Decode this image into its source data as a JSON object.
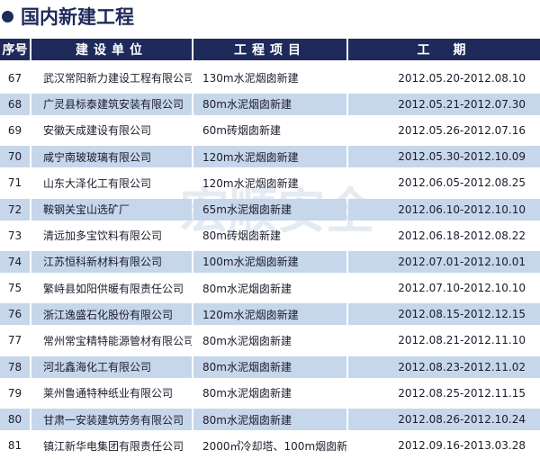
{
  "title": "国内新建工程",
  "colors": {
    "header_bg": "#1e2a5a",
    "alt_row": "#c6d6eb"
  },
  "headers": [
    "序号",
    "建设单位",
    "工程项目",
    "工　期"
  ],
  "rows": [
    [
      "67",
      "武汉常阳新力建设工程有限公司",
      "130m水泥烟囱新建",
      "2012.05.20-2012.08.10"
    ],
    [
      "68",
      "广灵县标泰建筑安装有限公司",
      "80m水泥烟囱新建",
      "2012.05.21-2012.07.30"
    ],
    [
      "69",
      "安徽天成建设有限公司",
      "60m砖烟囱新建",
      "2012.05.26-2012.07.16"
    ],
    [
      "70",
      "咸宁南玻玻璃有限公司",
      "120m水泥烟囱新建",
      "2012.05.30-2012.10.09"
    ],
    [
      "71",
      "山东大泽化工有限公司",
      "120m水泥烟囱新建",
      "2012.06.05-2012.08.25"
    ],
    [
      "72",
      "鞍钢关宝山选矿厂",
      "65m水泥烟囱新建",
      "2012.06.10-2012.10.10"
    ],
    [
      "73",
      "清远加多宝饮料有限公司",
      "80m砖烟囱新建",
      "2012.06.18-2012.08.22"
    ],
    [
      "74",
      "江苏恒科新材料有限公司",
      "100m水泥烟囱新建",
      "2012.07.01-2012.10.01"
    ],
    [
      "75",
      "繁峙县如阳供暖有限责任公司",
      "80m水泥烟囱新建",
      "2012.07.10-2012.10.10"
    ],
    [
      "76",
      "浙江逸盛石化股份有限公司",
      "120m水泥烟囱新建",
      "2012.08.15-2012.12.15"
    ],
    [
      "77",
      "常州常宝精特能源管材有限公司",
      "80m水泥烟囱新建",
      "2012.08.21-2012.11.10"
    ],
    [
      "78",
      "河北鑫海化工有限公司",
      "80m水泥烟囱新建",
      "2012.08.23-2012.11.02"
    ],
    [
      "79",
      "莱州鲁通特种纸业有限公司",
      "80m水泥烟囱新建",
      "2012.08.25-2012.11.15"
    ],
    [
      "80",
      "甘肃一安装建筑劳务有限公司",
      "80m水泥烟囱新建",
      "2012.08.26-2012.10.24"
    ],
    [
      "81",
      "镇江新华电集团有限责任公司",
      "2000㎡冷却塔、100m烟囱新建",
      "2012.09.16-2013.03.28"
    ]
  ],
  "watermark": "宏顺安全"
}
